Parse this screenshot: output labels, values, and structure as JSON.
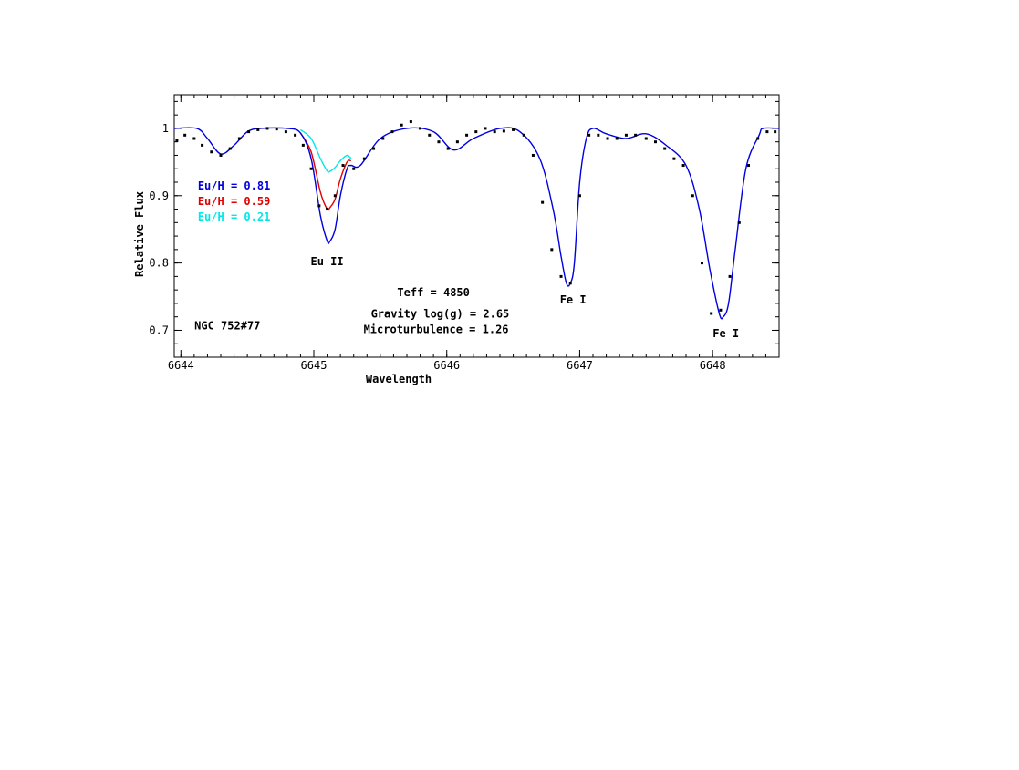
{
  "chart_data": {
    "type": "line",
    "title": "",
    "xlabel": "Wavelength",
    "ylabel": "Relative Flux",
    "xlim": [
      6643.95,
      6648.5
    ],
    "ylim": [
      0.66,
      1.05
    ],
    "x_ticks": [
      6644,
      6645,
      6646,
      6647,
      6648
    ],
    "x_tick_labels": [
      "6644",
      "6645",
      "6646",
      "6647",
      "6648"
    ],
    "y_ticks": [
      0.7,
      0.8,
      0.9,
      1.0
    ],
    "y_tick_labels": [
      "0.7",
      "0.8",
      "0.9",
      "1"
    ],
    "grid": false,
    "legend_placement": "left",
    "series": [
      {
        "name": "Eu/H = 0.81",
        "color": "#0000e0",
        "x": [
          6643.95,
          6644.12,
          6644.2,
          6644.3,
          6644.4,
          6644.5,
          6644.6,
          6644.8,
          6644.9,
          6644.98,
          6645.05,
          6645.1,
          6645.12,
          6645.16,
          6645.2,
          6645.25,
          6645.28,
          6645.35,
          6645.5,
          6645.7,
          6645.9,
          6646.05,
          6646.2,
          6646.4,
          6646.55,
          6646.7,
          6646.8,
          6646.86,
          6646.9,
          6646.93,
          6646.96,
          6647.0,
          6647.05,
          6647.1,
          6647.2,
          6647.35,
          6647.5,
          6647.65,
          6647.8,
          6647.9,
          6647.98,
          6648.05,
          6648.08,
          6648.12,
          6648.17,
          6648.25,
          6648.35,
          6648.38,
          6648.5
        ],
        "values": [
          1.0,
          1.0,
          0.985,
          0.962,
          0.975,
          0.995,
          1.0,
          1.0,
          0.993,
          0.955,
          0.87,
          0.833,
          0.832,
          0.85,
          0.9,
          0.94,
          0.945,
          0.945,
          0.985,
          1.0,
          0.995,
          0.968,
          0.985,
          1.0,
          0.995,
          0.955,
          0.88,
          0.81,
          0.77,
          0.77,
          0.8,
          0.92,
          0.985,
          1.0,
          0.992,
          0.985,
          0.992,
          0.975,
          0.945,
          0.88,
          0.79,
          0.725,
          0.72,
          0.74,
          0.82,
          0.94,
          0.99,
          1.0,
          1.0
        ]
      },
      {
        "name": "Eu/H = 0.59",
        "color": "#e00000",
        "x": [
          6644.9,
          6644.98,
          6645.05,
          6645.1,
          6645.12,
          6645.16,
          6645.2,
          6645.25,
          6645.28
        ],
        "values": [
          0.993,
          0.965,
          0.905,
          0.88,
          0.882,
          0.895,
          0.925,
          0.95,
          0.952
        ]
      },
      {
        "name": "Eu/H = 0.21",
        "color": "#00e8e8",
        "x": [
          6644.9,
          6644.98,
          6645.05,
          6645.1,
          6645.12,
          6645.16,
          6645.2,
          6645.25,
          6645.28
        ],
        "values": [
          0.998,
          0.985,
          0.955,
          0.937,
          0.936,
          0.942,
          0.952,
          0.96,
          0.955
        ]
      },
      {
        "name": "",
        "kind": "observed",
        "color": "#000000",
        "x": [
          6643.97,
          6644.03,
          6644.1,
          6644.16,
          6644.23,
          6644.3,
          6644.37,
          6644.44,
          6644.51,
          6644.58,
          6644.65,
          6644.72,
          6644.79,
          6644.86,
          6644.92,
          6644.98,
          6645.04,
          6645.1,
          6645.16,
          6645.22,
          6645.3,
          6645.38,
          6645.45,
          6645.52,
          6645.59,
          6645.66,
          6645.73,
          6645.8,
          6645.87,
          6645.94,
          6646.01,
          6646.08,
          6646.15,
          6646.22,
          6646.29,
          6646.36,
          6646.43,
          6646.5,
          6646.58,
          6646.65,
          6646.72,
          6646.79,
          6646.86,
          6646.93,
          6647.0,
          6647.07,
          6647.14,
          6647.21,
          6647.28,
          6647.35,
          6647.42,
          6647.5,
          6647.57,
          6647.64,
          6647.71,
          6647.78,
          6647.85,
          6647.92,
          6647.99,
          6648.06,
          6648.13,
          6648.2,
          6648.27,
          6648.34,
          6648.41,
          6648.47
        ],
        "values": [
          0.982,
          0.99,
          0.985,
          0.975,
          0.965,
          0.96,
          0.97,
          0.985,
          0.995,
          0.998,
          1.0,
          0.999,
          0.995,
          0.99,
          0.975,
          0.94,
          0.885,
          0.88,
          0.9,
          0.945,
          0.94,
          0.955,
          0.97,
          0.985,
          0.995,
          1.005,
          1.01,
          1.0,
          0.99,
          0.98,
          0.97,
          0.98,
          0.99,
          0.995,
          1.0,
          0.995,
          0.996,
          0.998,
          0.99,
          0.96,
          0.89,
          0.82,
          0.78,
          0.77,
          0.9,
          0.99,
          0.99,
          0.985,
          0.985,
          0.99,
          0.99,
          0.985,
          0.98,
          0.97,
          0.955,
          0.945,
          0.9,
          0.8,
          0.725,
          0.73,
          0.78,
          0.86,
          0.945,
          0.985,
          0.995,
          0.995
        ]
      }
    ],
    "annotations": [
      {
        "id": "eu2",
        "text": "Eu II",
        "x": 6645.1,
        "y": 0.797,
        "color": "#000000"
      },
      {
        "id": "fe1a",
        "text": "Fe I",
        "x": 6646.95,
        "y": 0.74,
        "color": "#000000"
      },
      {
        "id": "fe1b",
        "text": "Fe I",
        "x": 6648.1,
        "y": 0.69,
        "color": "#000000"
      },
      {
        "id": "teff",
        "text": "Teff = 4850",
        "x": 6645.9,
        "y": 0.751,
        "color": "#000000"
      },
      {
        "id": "grav",
        "text": "Gravity log(g) = 2.65",
        "x": 6645.95,
        "y": 0.719,
        "color": "#000000"
      },
      {
        "id": "micro",
        "text": "Microturbulence = 1.26",
        "x": 6645.92,
        "y": 0.696,
        "color": "#000000"
      },
      {
        "id": "star",
        "text": "NGC 752#77",
        "x": 6644.35,
        "y": 0.701,
        "color": "#000000"
      },
      {
        "id": "leg1",
        "text": "Eu/H = 0.81",
        "x": 6644.4,
        "y": 0.909,
        "color": "#0000e0"
      },
      {
        "id": "leg2",
        "text": "Eu/H = 0.59",
        "x": 6644.4,
        "y": 0.886,
        "color": "#e00000"
      },
      {
        "id": "leg3",
        "text": "Eu/H = 0.21",
        "x": 6644.4,
        "y": 0.863,
        "color": "#00e8e8"
      }
    ]
  }
}
